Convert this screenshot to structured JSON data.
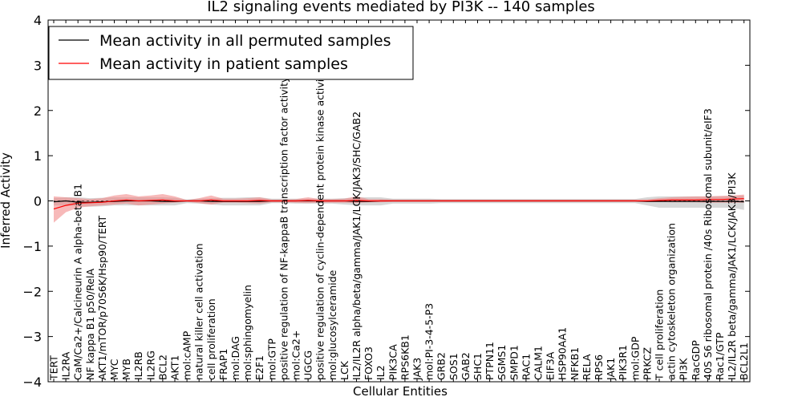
{
  "chart_data": {
    "type": "line",
    "title": "IL2 signaling events mediated by PI3K -- 140 samples",
    "xlabel": "Cellular Entities",
    "ylabel": "Inferred Activity",
    "ylim": [
      -4,
      4
    ],
    "yticks": [
      "−4",
      "−3",
      "−2",
      "−1",
      "0",
      "1",
      "2",
      "3",
      "4"
    ],
    "grid": false,
    "legend_position": "top-left",
    "categories": [
      "TERT",
      "IL2RA",
      "CaM/Ca2+/Calcineurin A alpha-beta B1",
      "NF kappa B1 p50/RelA",
      "AKT1/mTOR/p70S6K/Hsp90/TERT",
      "MYC",
      "MYB",
      "IL2RB",
      "IL2RG",
      "BCL2",
      "AKT1",
      "mol:cAMP",
      "natural killer cell activation",
      "cell proliferation",
      "FRAP1",
      "mol:DAG",
      "mol:sphingomyelin",
      "E2F1",
      "mol:GTP",
      "positive regulation of NF-kappaB transcription factor activity",
      "mol:Ca2+",
      "UGCG",
      "positive regulation of cyclin-dependent protein kinase activity",
      "mol:glucosylceramide",
      "LCK",
      "IL2/IL2R alpha/beta/gamma/JAK1/LCK/JAK3/SHC/GAB2",
      "FOXO3",
      "IL2",
      "PIK3CA",
      "RPS6KB1",
      "JAK3",
      "mol:PI-3-4-5-P3",
      "GRB2",
      "SOS1",
      "GAB2",
      "SHC1",
      "PTPN11",
      "SGMS1",
      "SMPD1",
      "RAC1",
      "CALM1",
      "EIF3A",
      "HSP90AA1",
      "NFKB1",
      "RELA",
      "RPS6",
      "JAK1",
      "PIK3R1",
      "mol:GDP",
      "PRKCZ",
      "T cell proliferation",
      "actin cytoskeleton organization",
      "PI3K",
      "RacGDP",
      "40S S6 ribosomal protein /40s Ribosomal subunit/eIF3",
      "Rac1/GTP",
      "IL2/IL2R beta/gamma/JAK1/LCK/JAK3/PI3K",
      "BCL2L1"
    ],
    "series": [
      {
        "name": "Mean activity in all permuted samples",
        "color": "#000000",
        "band_color": "#b0b0b0",
        "values": [
          -0.02,
          0.0,
          -0.03,
          -0.03,
          -0.02,
          -0.01,
          0.0,
          0.0,
          0.0,
          -0.01,
          -0.01,
          0.0,
          0.0,
          -0.01,
          -0.01,
          -0.01,
          -0.01,
          -0.01,
          0.0,
          0.0,
          0.0,
          0.0,
          0.0,
          0.0,
          0.0,
          -0.01,
          -0.01,
          0.0,
          0.0,
          0.0,
          0.0,
          0.0,
          0.0,
          0.0,
          0.0,
          0.0,
          0.0,
          0.0,
          0.0,
          0.0,
          0.0,
          0.0,
          0.0,
          0.0,
          0.0,
          0.0,
          0.0,
          0.0,
          0.0,
          -0.01,
          -0.01,
          -0.01,
          -0.01,
          -0.01,
          -0.01,
          -0.01,
          -0.01,
          -0.02
        ],
        "lower": [
          -0.1,
          -0.1,
          -0.12,
          -0.13,
          -0.12,
          -0.1,
          -0.1,
          -0.1,
          -0.1,
          -0.1,
          -0.1,
          -0.05,
          -0.06,
          -0.08,
          -0.1,
          -0.1,
          -0.1,
          -0.1,
          -0.05,
          -0.05,
          -0.06,
          -0.06,
          -0.06,
          -0.06,
          -0.08,
          -0.1,
          -0.1,
          -0.1,
          -0.06,
          -0.06,
          -0.06,
          -0.06,
          -0.05,
          -0.05,
          -0.05,
          -0.05,
          -0.05,
          -0.05,
          -0.05,
          -0.05,
          -0.05,
          -0.05,
          -0.05,
          -0.05,
          -0.05,
          -0.05,
          -0.05,
          -0.05,
          -0.05,
          -0.1,
          -0.15,
          -0.15,
          -0.15,
          -0.15,
          -0.15,
          -0.15,
          -0.15,
          -0.2
        ],
        "upper": [
          0.06,
          0.08,
          0.08,
          0.06,
          0.07,
          0.08,
          0.08,
          0.08,
          0.08,
          0.08,
          0.07,
          0.03,
          0.05,
          0.06,
          0.07,
          0.07,
          0.08,
          0.08,
          0.05,
          0.05,
          0.05,
          0.05,
          0.05,
          0.05,
          0.06,
          0.08,
          0.08,
          0.08,
          0.05,
          0.05,
          0.05,
          0.05,
          0.04,
          0.04,
          0.04,
          0.04,
          0.04,
          0.04,
          0.04,
          0.04,
          0.04,
          0.04,
          0.04,
          0.04,
          0.04,
          0.04,
          0.04,
          0.04,
          0.04,
          0.08,
          0.1,
          0.1,
          0.1,
          0.1,
          0.1,
          0.1,
          0.1,
          0.12
        ]
      },
      {
        "name": "Mean activity in patient samples",
        "color": "#ff0000",
        "band_color": "#f08080",
        "values": [
          -0.18,
          -0.1,
          -0.05,
          -0.04,
          -0.03,
          0.0,
          0.02,
          0.0,
          0.01,
          0.02,
          0.0,
          0.0,
          0.0,
          0.02,
          0.0,
          0.0,
          0.0,
          0.01,
          0.0,
          0.0,
          0.0,
          0.01,
          0.0,
          0.0,
          0.0,
          0.01,
          0.0,
          0.0,
          0.0,
          0.0,
          0.0,
          0.0,
          0.0,
          0.0,
          0.0,
          0.0,
          0.0,
          0.0,
          0.0,
          0.0,
          0.0,
          0.0,
          0.0,
          0.0,
          0.0,
          0.0,
          0.0,
          0.0,
          0.0,
          0.0,
          0.01,
          0.02,
          0.02,
          0.02,
          0.03,
          0.03,
          0.04,
          0.05
        ],
        "lower": [
          -0.48,
          -0.25,
          -0.15,
          -0.12,
          -0.1,
          -0.08,
          -0.06,
          -0.1,
          -0.08,
          -0.06,
          -0.04,
          -0.02,
          -0.05,
          -0.08,
          -0.04,
          -0.04,
          -0.05,
          -0.06,
          -0.03,
          -0.03,
          -0.04,
          -0.05,
          -0.04,
          -0.04,
          -0.04,
          -0.05,
          -0.03,
          -0.03,
          -0.02,
          -0.02,
          -0.02,
          -0.02,
          -0.02,
          -0.02,
          -0.02,
          -0.02,
          -0.02,
          -0.02,
          -0.02,
          -0.02,
          -0.02,
          -0.02,
          -0.02,
          -0.02,
          -0.02,
          -0.02,
          -0.02,
          -0.02,
          -0.02,
          -0.02,
          -0.02,
          -0.03,
          -0.03,
          -0.03,
          -0.04,
          -0.04,
          -0.04,
          -0.04
        ],
        "upper": [
          0.1,
          0.08,
          0.06,
          0.04,
          0.06,
          0.12,
          0.15,
          0.1,
          0.12,
          0.15,
          0.1,
          0.02,
          0.06,
          0.12,
          0.05,
          0.05,
          0.06,
          0.08,
          0.03,
          0.03,
          0.04,
          0.08,
          0.04,
          0.04,
          0.05,
          0.1,
          0.04,
          0.04,
          0.03,
          0.03,
          0.03,
          0.03,
          0.03,
          0.03,
          0.03,
          0.03,
          0.03,
          0.03,
          0.03,
          0.03,
          0.03,
          0.03,
          0.03,
          0.03,
          0.03,
          0.03,
          0.03,
          0.03,
          0.03,
          0.03,
          0.06,
          0.08,
          0.09,
          0.1,
          0.1,
          0.11,
          0.12,
          0.14
        ]
      }
    ]
  }
}
